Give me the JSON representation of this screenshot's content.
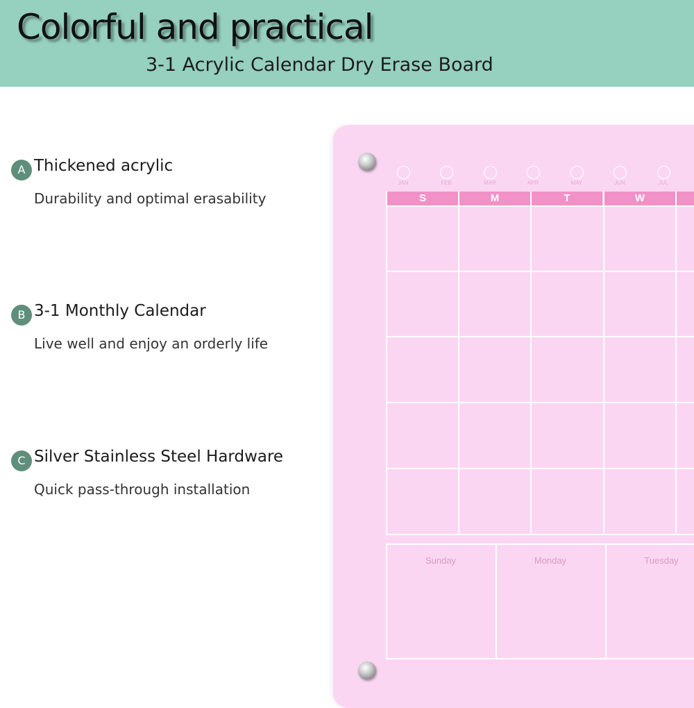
{
  "header": {
    "title": "Colorful and practical",
    "subtitle": "3-1 Acrylic Calendar Dry Erase Board"
  },
  "features": [
    {
      "badge": "A",
      "heading": "Thickened acrylic",
      "description": "Durability and optimal erasability"
    },
    {
      "badge": "B",
      "heading": "3-1 Monthly Calendar",
      "description": "Live well and enjoy an orderly life"
    },
    {
      "badge": "C",
      "heading": "Silver Stainless Steel Hardware",
      "description": "Quick pass-through installation"
    }
  ],
  "board": {
    "months": [
      "JAN",
      "FEB",
      "MAR",
      "APR",
      "MAY",
      "JUN",
      "JUL"
    ],
    "day_headers": [
      "S",
      "M",
      "T",
      "W"
    ],
    "weekdays": [
      "Sunday",
      "Monday",
      "Tuesday"
    ],
    "colors": {
      "board": "#fbd6f3",
      "header_bar": "#f291c7",
      "banner": "#96d0bf"
    }
  }
}
